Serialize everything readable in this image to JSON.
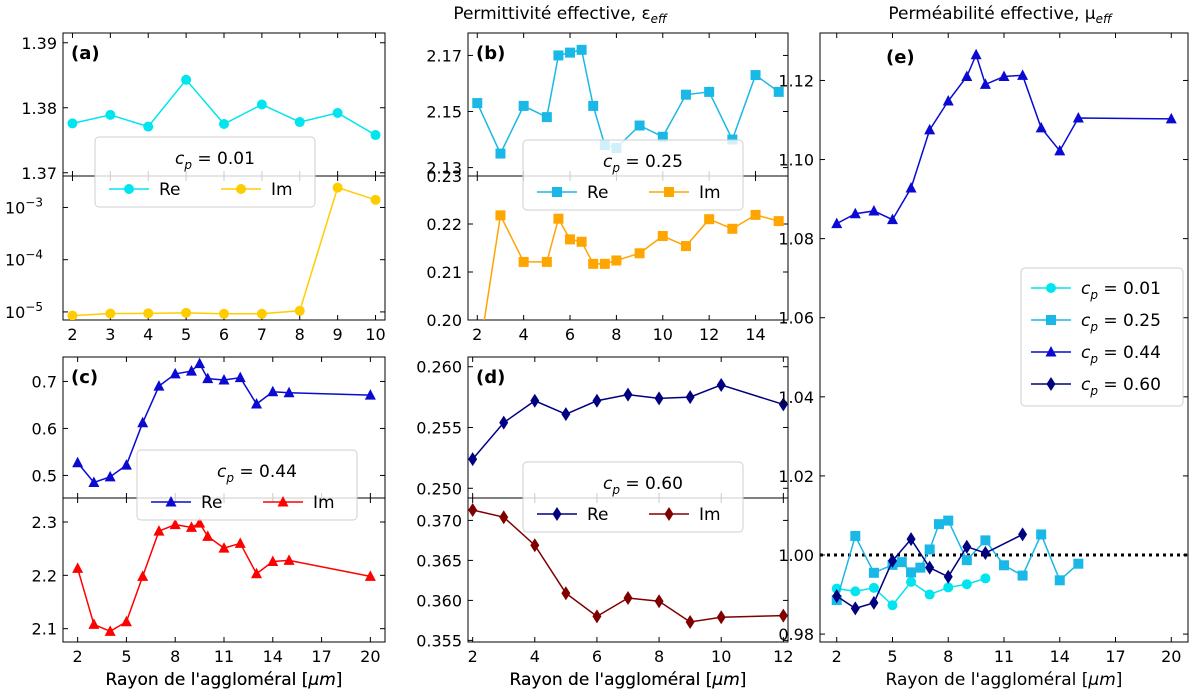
{
  "figure": {
    "title_left": "Permittivité effective, ε",
    "title_left_sub": "eff",
    "title_right": "Perméabilité effective, μ",
    "title_right_sub": "eff",
    "xlabel_prefix": "Rayon de l'aggloméral [",
    "xlabel_unit": "μm",
    "xlabel_suffix": "]"
  },
  "chart_data": [
    {
      "type": "line",
      "panel": "(a)",
      "part": "Re",
      "cp_label": "c",
      "cp_sub": "p",
      "cp_value": "= 0.01",
      "legend": [
        "Re",
        "Im"
      ],
      "x": [
        2,
        3,
        4,
        5,
        6,
        7,
        8,
        9,
        10
      ],
      "values": [
        1.3776,
        1.3789,
        1.3771,
        1.3843,
        1.3775,
        1.3805,
        1.3778,
        1.3792,
        1.3758
      ],
      "ylim": [
        1.3695,
        1.3915
      ],
      "yticks": [
        1.37,
        1.38,
        1.39
      ],
      "ytick_labels": [
        "1.37",
        "1.38",
        "1.39"
      ],
      "xlim": [
        1.75,
        10.25
      ],
      "color": "#00e5ee",
      "marker": "circle"
    },
    {
      "type": "line",
      "panel": "(a)",
      "part": "Im",
      "yscale": "log",
      "x": [
        2,
        3,
        4,
        5,
        6,
        7,
        8,
        9,
        10
      ],
      "values": [
        8.5e-06,
        9.3e-06,
        9.4e-06,
        9.6e-06,
        9.2e-06,
        9.2e-06,
        1.05e-05,
        0.0024,
        0.0014
      ],
      "ylim": [
        7e-06,
        0.004
      ],
      "yticks": [
        1e-05,
        0.0001,
        0.001
      ],
      "ytick_labels": [
        "10",
        "10",
        "10"
      ],
      "ytick_exps": [
        "−5",
        "−4",
        "−3"
      ],
      "xticks": [
        2,
        3,
        4,
        5,
        6,
        7,
        8,
        9,
        10
      ],
      "xtick_labels": [
        "2",
        "3",
        "4",
        "5",
        "6",
        "7",
        "8",
        "9",
        "10"
      ],
      "xlim": [
        1.75,
        10.25
      ],
      "color": "#ffcc00",
      "marker": "circle"
    },
    {
      "type": "line",
      "panel": "(b)",
      "part": "Re",
      "cp_label": "c",
      "cp_sub": "p",
      "cp_value": "= 0.25",
      "legend": [
        "Re",
        "Im"
      ],
      "x": [
        2,
        3,
        4,
        5,
        5.5,
        6,
        6.5,
        7,
        7.5,
        8,
        9,
        10,
        11,
        12,
        13,
        14,
        15
      ],
      "values": [
        2.153,
        2.135,
        2.152,
        2.148,
        2.17,
        2.171,
        2.172,
        2.152,
        2.138,
        2.137,
        2.145,
        2.141,
        2.156,
        2.157,
        2.14,
        2.163,
        2.157
      ],
      "ylim": [
        2.127,
        2.178
      ],
      "yticks": [
        2.13,
        2.15,
        2.17
      ],
      "ytick_labels": [
        "2.13",
        "2.15",
        "2.17"
      ],
      "xlim": [
        1.6,
        15.4
      ],
      "color": "#1ab8e6",
      "marker": "square"
    },
    {
      "type": "line",
      "panel": "(b)",
      "part": "Im",
      "x": [
        2,
        3,
        4,
        5,
        5.5,
        6,
        6.5,
        7,
        7.5,
        8,
        9,
        10,
        11,
        12,
        13,
        14,
        15
      ],
      "values": [
        0.1905,
        0.2218,
        0.2121,
        0.2121,
        0.2211,
        0.2168,
        0.2163,
        0.2117,
        0.2117,
        0.2124,
        0.2139,
        0.2175,
        0.2154,
        0.221,
        0.219,
        0.2219,
        0.2206
      ],
      "ylim": [
        0.2,
        0.23
      ],
      "yticks": [
        0.2,
        0.21,
        0.22,
        0.23
      ],
      "ytick_labels": [
        "0.20",
        "0.21",
        "0.22",
        "0.23"
      ],
      "xticks": [
        2,
        4,
        6,
        8,
        10,
        12,
        14
      ],
      "xtick_labels": [
        "2",
        "4",
        "6",
        "8",
        "10",
        "12",
        "14"
      ],
      "xlim": [
        1.6,
        15.4
      ],
      "color": "#ffa500",
      "marker": "square"
    },
    {
      "type": "line",
      "panel": "(c)",
      "part": "Re",
      "cp_label": "c",
      "cp_sub": "p",
      "cp_value": "= 0.44",
      "legend": [
        "Re",
        "Im"
      ],
      "x": [
        2,
        3,
        4,
        5,
        6,
        7,
        8,
        9,
        9.5,
        10,
        11,
        12,
        13,
        14,
        15,
        20
      ],
      "values": [
        0.527,
        0.485,
        0.497,
        0.522,
        0.612,
        0.69,
        0.716,
        0.722,
        0.738,
        0.706,
        0.703,
        0.708,
        0.652,
        0.678,
        0.676,
        0.671
      ],
      "ylim": [
        0.452,
        0.752
      ],
      "yticks": [
        0.5,
        0.6,
        0.7
      ],
      "ytick_labels": [
        "0.5",
        "0.6",
        "0.7"
      ],
      "xlim": [
        1.1,
        20.9
      ],
      "color": "#0a0ad2",
      "marker": "triangle"
    },
    {
      "type": "line",
      "panel": "(c)",
      "part": "Im",
      "x": [
        2,
        3,
        4,
        5,
        6,
        7,
        8,
        9,
        9.5,
        10,
        11,
        12,
        13,
        14,
        15,
        20
      ],
      "values": [
        2.213,
        2.108,
        2.095,
        2.113,
        2.198,
        2.283,
        2.295,
        2.29,
        2.298,
        2.273,
        2.251,
        2.26,
        2.203,
        2.226,
        2.228,
        2.198
      ],
      "ylim": [
        2.075,
        2.345
      ],
      "yticks": [
        2.1,
        2.2,
        2.3
      ],
      "ytick_labels": [
        "2.1",
        "2.2",
        "2.3"
      ],
      "xticks": [
        2,
        5,
        8,
        11,
        14,
        17,
        20
      ],
      "xtick_labels": [
        "2",
        "5",
        "8",
        "11",
        "14",
        "17",
        "20"
      ],
      "xlim": [
        1.1,
        20.9
      ],
      "color": "#ff0000",
      "marker": "triangle"
    },
    {
      "type": "line",
      "panel": "(d)",
      "part": "Re",
      "cp_label": "c",
      "cp_sub": "p",
      "cp_value": "= 0.60",
      "legend": [
        "Re",
        "Im"
      ],
      "x": [
        2,
        3,
        4,
        5,
        6,
        7,
        8,
        9,
        10,
        12
      ],
      "values": [
        0.2524,
        0.2554,
        0.2572,
        0.2561,
        0.2572,
        0.2577,
        0.2574,
        0.2575,
        0.2585,
        0.2569
      ],
      "ylim": [
        0.2492,
        0.2608
      ],
      "yticks": [
        0.25,
        0.255,
        0.26
      ],
      "ytick_labels": [
        "0.250",
        "0.255",
        "0.260"
      ],
      "xlim": [
        1.85,
        12.15
      ],
      "color": "#000080",
      "marker": "diamond"
    },
    {
      "type": "line",
      "panel": "(d)",
      "part": "Im",
      "x": [
        2,
        3,
        4,
        5,
        6,
        7,
        8,
        9,
        10,
        12
      ],
      "values": [
        0.3713,
        0.3704,
        0.3669,
        0.3609,
        0.358,
        0.3603,
        0.3599,
        0.3573,
        0.3579,
        0.3581
      ],
      "ylim": [
        0.3548,
        0.3728
      ],
      "yticks": [
        0.355,
        0.36,
        0.365,
        0.37
      ],
      "ytick_labels": [
        "0.355",
        "0.360",
        "0.365",
        "0.370"
      ],
      "xticks": [
        2,
        4,
        6,
        8,
        10,
        12
      ],
      "xtick_labels": [
        "2",
        "4",
        "6",
        "8",
        "10",
        "12"
      ],
      "xlim": [
        1.85,
        12.15
      ],
      "color": "#800000",
      "marker": "diamond"
    },
    {
      "type": "line",
      "panel": "(e)",
      "x_range": [
        1.1,
        20.9
      ],
      "ylim": [
        0.978,
        1.132
      ],
      "yticks": [
        0.98,
        1.0,
        1.02,
        1.04,
        1.06,
        1.08,
        1.1,
        1.12
      ],
      "ytick_labels": [
        "0.98",
        "1.00",
        "1.02",
        "1.04",
        "1.06",
        "1.08",
        "1.10",
        "1.12"
      ],
      "xticks": [
        2,
        5,
        8,
        11,
        14,
        17,
        20
      ],
      "xtick_labels": [
        "2",
        "5",
        "8",
        "11",
        "14",
        "17",
        "20"
      ],
      "reference_line": 1.0,
      "series": [
        {
          "name_main": "c",
          "name_sub": "p",
          "name_value": "= 0.01",
          "color": "#00e5ee",
          "marker": "circle",
          "x": [
            2,
            3,
            4,
            5,
            6,
            7,
            8,
            9,
            10
          ],
          "values": [
            0.9915,
            0.9908,
            0.9917,
            0.9873,
            0.9932,
            0.99,
            0.9918,
            0.9926,
            0.9941
          ]
        },
        {
          "name_main": "c",
          "name_sub": "p",
          "name_value": "= 0.25",
          "color": "#1ab8e6",
          "marker": "square",
          "x": [
            2,
            3,
            4,
            5,
            5.5,
            6,
            6.5,
            7,
            7.5,
            8,
            9,
            10,
            11,
            12,
            13,
            14,
            15
          ],
          "values": [
            0.9886,
            1.0048,
            0.9955,
            0.9975,
            0.9982,
            0.9956,
            0.9968,
            1.0014,
            1.0078,
            1.0087,
            0.9987,
            1.0037,
            0.9974,
            0.9948,
            1.0052,
            0.9936,
            0.9978
          ]
        },
        {
          "name_main": "c",
          "name_sub": "p",
          "name_value": "= 0.44",
          "color": "#0a0ad2",
          "marker": "triangle",
          "x": [
            2,
            3,
            4,
            5,
            6,
            7,
            8,
            9,
            9.5,
            10,
            11,
            12,
            13,
            14,
            15,
            20
          ],
          "values": [
            1.0838,
            1.0863,
            1.087,
            1.0848,
            1.0928,
            1.1075,
            1.1148,
            1.121,
            1.1265,
            1.119,
            1.121,
            1.1213,
            1.108,
            1.1022,
            1.1105,
            1.1103
          ]
        },
        {
          "name_main": "c",
          "name_sub": "p",
          "name_value": "= 0.60",
          "color": "#000080",
          "marker": "diamond",
          "x": [
            2,
            3,
            4,
            5,
            6,
            7,
            8,
            9,
            10,
            12
          ],
          "values": [
            0.9896,
            0.9865,
            0.9879,
            0.9985,
            1.004,
            0.9968,
            0.9945,
            1.0021,
            1.0005,
            1.0052
          ]
        }
      ]
    }
  ]
}
